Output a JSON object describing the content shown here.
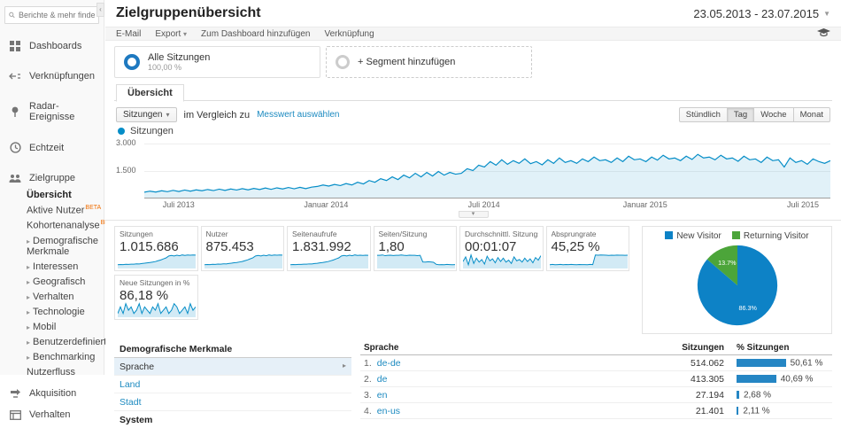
{
  "sidebar": {
    "search_placeholder": "Berichte & mehr finden",
    "beta_label": "BETA",
    "items": [
      {
        "label": "Dashboards"
      },
      {
        "label": "Verknüpfungen"
      },
      {
        "label": "Radar-Ereignisse"
      },
      {
        "label": "Echtzeit"
      },
      {
        "label": "Zielgruppe"
      }
    ],
    "audience_children": [
      {
        "label": "Übersicht"
      },
      {
        "label": "Aktive Nutzer"
      },
      {
        "label": "Kohortenanalyse"
      },
      {
        "label": "Demografische Merkmale"
      },
      {
        "label": "Interessen"
      },
      {
        "label": "Geografisch"
      },
      {
        "label": "Verhalten"
      },
      {
        "label": "Technologie"
      },
      {
        "label": "Mobil"
      },
      {
        "label": "Benutzerdefiniert"
      },
      {
        "label": "Benchmarking"
      },
      {
        "label": "Nutzerfluss"
      }
    ],
    "bottom_items": [
      {
        "label": "Akquisition"
      },
      {
        "label": "Verhalten"
      }
    ]
  },
  "header": {
    "title": "Zielgruppenübersicht",
    "date_range": "23.05.2013 - 23.07.2015"
  },
  "actionbar": {
    "email": "E-Mail",
    "export": "Export",
    "add_to_dashboard": "Zum Dashboard hinzufügen",
    "shortcut": "Verknüpfung"
  },
  "segments": {
    "all_label": "Alle Sitzungen",
    "all_pct": "100,00 %",
    "add_label": "+ Segment hinzufügen"
  },
  "tabs": {
    "overview": "Übersicht"
  },
  "controls": {
    "metric_select": "Sitzungen",
    "compare_text": "im Vergleich zu",
    "select_metric_link": "Messwert auswählen",
    "legend_label": "Sitzungen",
    "granularity": [
      "Stündlich",
      "Tag",
      "Woche",
      "Monat"
    ],
    "granularity_active": "Tag"
  },
  "chart_data": [
    {
      "type": "line",
      "series": [
        {
          "name": "Sitzungen",
          "values": [
            300,
            360,
            310,
            380,
            330,
            400,
            340,
            420,
            360,
            430,
            380,
            450,
            390,
            470,
            400,
            480,
            420,
            500,
            430,
            510,
            450,
            530,
            460,
            540,
            480,
            560,
            490,
            570,
            500,
            580,
            620,
            700,
            640,
            730,
            670,
            780,
            700,
            850,
            760,
            950,
            850,
            1050,
            950,
            1150,
            1000,
            1250,
            1100,
            1350,
            1150,
            1400,
            1200,
            1450,
            1250,
            1400,
            1300,
            1350,
            1600,
            1500,
            1800,
            1700,
            2000,
            1800,
            2100,
            1850,
            2050,
            1900,
            2150,
            1880,
            2000,
            1820,
            2100,
            1900,
            2200,
            1950,
            2050,
            1900,
            2150,
            2000,
            2250,
            2050,
            2100,
            1950,
            2200,
            2000,
            2300,
            2100,
            2150,
            2000,
            2250,
            2080,
            2350,
            2150,
            2200,
            2050,
            2300,
            2120,
            2400,
            2200,
            2250,
            2100,
            2350,
            2150,
            2200,
            2020,
            2300,
            2100,
            2150,
            1950,
            2250,
            2050,
            2100,
            1700,
            2200,
            1950,
            2050,
            1850,
            2150,
            2000,
            1900,
            2050
          ]
        }
      ],
      "x_labels": [
        "Juli 2013",
        "Januar 2014",
        "Juli 2014",
        "Januar 2015",
        "Juli 2015"
      ],
      "x_label_pos": [
        5,
        26.5,
        49.5,
        73,
        96
      ],
      "yticks": [
        "3.000",
        "1.500"
      ],
      "ylim": [
        0,
        3000
      ],
      "color": "#058dc7",
      "legend_position": "top-left",
      "grid": true
    },
    {
      "type": "pie",
      "labels": [
        "New Visitor",
        "Returning Visitor"
      ],
      "values": [
        86.3,
        13.7
      ],
      "colors": [
        "#0d82c6",
        "#4ca53a"
      ],
      "legend_position": "top"
    }
  ],
  "metrics": [
    {
      "label": "Sitzungen",
      "value": "1.015.686",
      "spark": [
        300,
        340,
        320,
        380,
        360,
        420,
        400,
        470,
        450,
        530,
        580,
        660,
        720,
        800,
        900,
        1050,
        1200,
        1400,
        1600,
        1950,
        2050,
        1950,
        2100,
        2000,
        2150,
        2050,
        2150,
        2100,
        2150,
        2120
      ]
    },
    {
      "label": "Nutzer",
      "value": "875.453",
      "spark": [
        280,
        320,
        300,
        360,
        340,
        400,
        380,
        450,
        430,
        510,
        560,
        640,
        700,
        780,
        880,
        1020,
        1170,
        1370,
        1570,
        1900,
        2000,
        1900,
        2050,
        1950,
        2100,
        2000,
        2100,
        2050,
        2100,
        2070
      ]
    },
    {
      "label": "Seitenaufrufe",
      "value": "1.831.992",
      "spark": [
        500,
        560,
        530,
        620,
        590,
        680,
        650,
        760,
        730,
        860,
        940,
        1070,
        1160,
        1290,
        1450,
        1690,
        1930,
        2250,
        2570,
        3130,
        3290,
        3130,
        3370,
        3210,
        3450,
        3290,
        3370,
        3290,
        3370,
        3330
      ]
    },
    {
      "label": "Seiten/Sitzung",
      "value": "1,80",
      "spark": [
        2.1,
        2.1,
        2.12,
        2.08,
        2.1,
        2.11,
        2.09,
        2.1,
        2.1,
        2.12,
        2.1,
        2.09,
        2.11,
        2.1,
        2.1,
        2.08,
        2.1,
        1.75,
        1.74,
        1.76,
        1.75,
        1.73,
        1.62,
        1.6,
        1.61,
        1.6,
        1.62,
        1.61,
        1.6,
        1.61
      ]
    },
    {
      "label": "Durchschnittl. Sitzungsdauer",
      "value": "00:01:07",
      "spark": [
        65,
        72,
        60,
        75,
        62,
        70,
        64,
        68,
        61,
        73,
        66,
        69,
        63,
        71,
        65,
        70,
        64,
        67,
        62,
        72,
        66,
        68,
        64,
        70,
        65,
        69,
        63,
        71,
        67,
        74
      ]
    },
    {
      "label": "Absprungrate",
      "value": "45,25 %",
      "spark": [
        38,
        38.5,
        38,
        38.2,
        38.4,
        38,
        38.3,
        38.1,
        38.4,
        38.2,
        38,
        38.3,
        38.1,
        38.2,
        38,
        38.4,
        38.2,
        52,
        51.8,
        52.1,
        51.9,
        51.7,
        51.5,
        51.8,
        51.6,
        51.9,
        51.7,
        51.8,
        51.6,
        51.7
      ]
    },
    {
      "label": "Neue Sitzungen in %",
      "value": "86,18 %",
      "spark": [
        86,
        86.2,
        86,
        86.3,
        86.1,
        86.2,
        86,
        86.1,
        86.3,
        86,
        86.2,
        86.1,
        86,
        86.2,
        86.1,
        86.3,
        86,
        86.1,
        86.2,
        86,
        86.1,
        86.3,
        86.2,
        86,
        86.1,
        86.2,
        86,
        86.3,
        86.1,
        86.2
      ]
    }
  ],
  "report": {
    "left": {
      "header": "Demografische Merkmale",
      "items": [
        "Sprache",
        "Land",
        "Stadt"
      ],
      "active_item": "Sprache",
      "next_header": "System"
    },
    "table": {
      "col_dim": "Sprache",
      "col_sessions": "Sitzungen",
      "col_pct": "% Sitzungen",
      "rows": [
        {
          "rank": "1.",
          "lang": "de-de",
          "sessions": "514.062",
          "pct": "50,61 %",
          "pct_value": 50.61
        },
        {
          "rank": "2.",
          "lang": "de",
          "sessions": "413.305",
          "pct": "40,69 %",
          "pct_value": 40.69
        },
        {
          "rank": "3.",
          "lang": "en",
          "sessions": "27.194",
          "pct": "2,68 %",
          "pct_value": 2.68
        },
        {
          "rank": "4.",
          "lang": "en-us",
          "sessions": "21.401",
          "pct": "2,11 %",
          "pct_value": 2.11
        }
      ]
    }
  }
}
